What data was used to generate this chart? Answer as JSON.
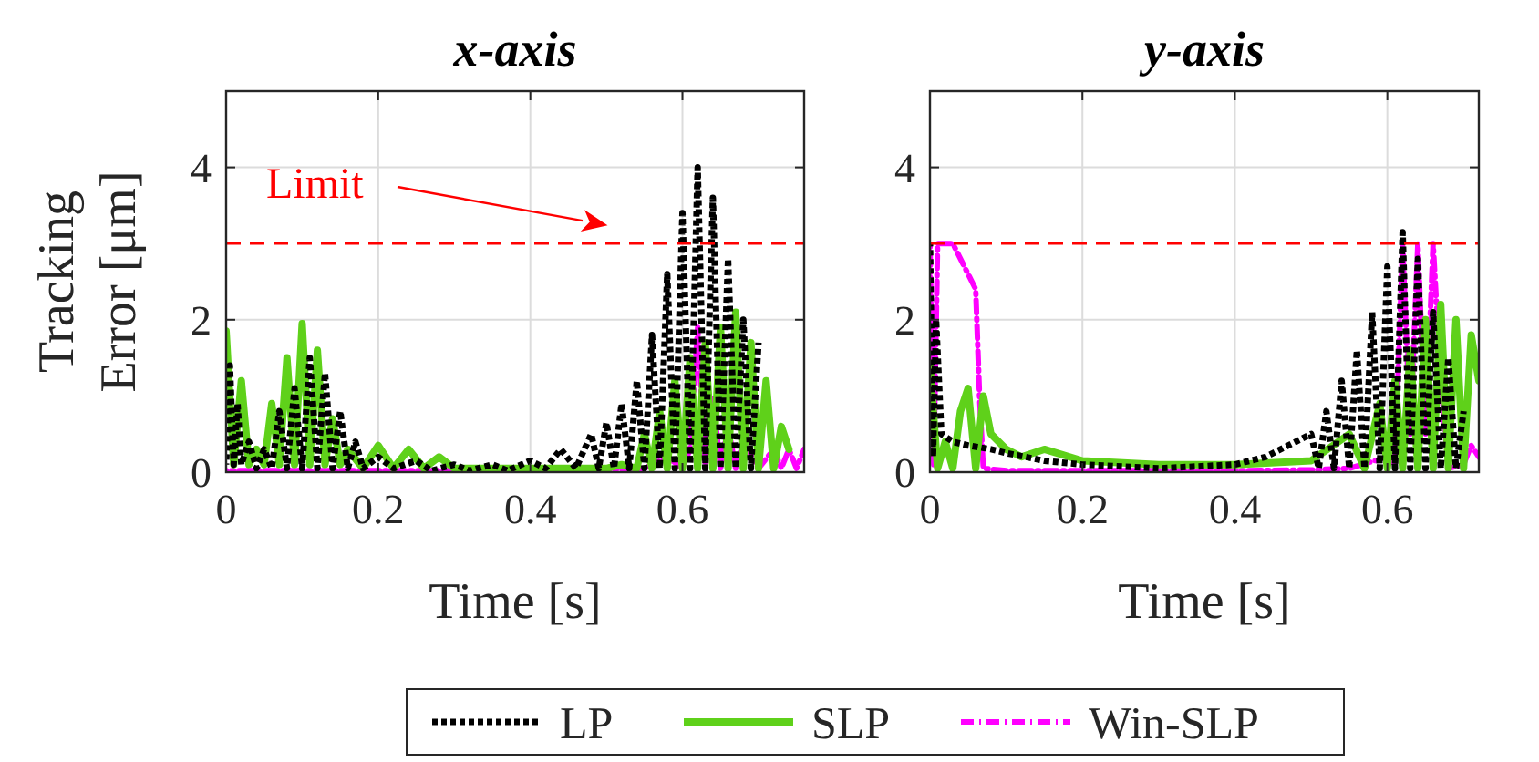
{
  "chart_data": [
    {
      "type": "line",
      "title": "x-axis",
      "xlabel": "Time [s]",
      "ylabel": "Tracking Error [μm]",
      "xlim": [
        0,
        0.76
      ],
      "xticks": [
        0,
        0.2,
        0.4,
        0.6
      ],
      "ylim": [
        0,
        5
      ],
      "yticks": [
        0,
        2,
        4
      ],
      "grid": true,
      "legend": "bottom",
      "marker": "none",
      "ref_lines": [
        {
          "axis": "y",
          "value": 3,
          "label": "Limit",
          "color": "#ff0000",
          "line_style": "dashed"
        }
      ],
      "series": [
        {
          "name": "LP",
          "color": "#000000",
          "line_style": "dotted",
          "x": [
            0,
            0.005,
            0.01,
            0.015,
            0.02,
            0.03,
            0.04,
            0.05,
            0.06,
            0.07,
            0.08,
            0.09,
            0.1,
            0.11,
            0.12,
            0.13,
            0.14,
            0.15,
            0.16,
            0.17,
            0.18,
            0.2,
            0.22,
            0.25,
            0.27,
            0.3,
            0.32,
            0.35,
            0.37,
            0.4,
            0.42,
            0.44,
            0.46,
            0.48,
            0.49,
            0.5,
            0.51,
            0.52,
            0.53,
            0.54,
            0.55,
            0.56,
            0.57,
            0.58,
            0.59,
            0.6,
            0.61,
            0.62,
            0.63,
            0.64,
            0.65,
            0.66,
            0.67,
            0.68,
            0.69,
            0.7
          ],
          "values": [
            0.1,
            1.4,
            0.1,
            0.9,
            0.1,
            0.4,
            0.05,
            0.3,
            0.05,
            0.8,
            0.05,
            1.1,
            0.05,
            1.5,
            0.05,
            1.3,
            0.05,
            0.8,
            0.05,
            0.4,
            0.05,
            0.2,
            0.05,
            0.15,
            0.02,
            0.1,
            0.02,
            0.1,
            0.02,
            0.15,
            0.05,
            0.3,
            0.05,
            0.5,
            0.05,
            0.65,
            0.05,
            0.9,
            0.05,
            1.2,
            0.05,
            1.8,
            0.05,
            2.6,
            0.05,
            3.4,
            0.05,
            4.0,
            0.05,
            3.6,
            0.05,
            2.8,
            0.05,
            2.0,
            0.05,
            1.7
          ]
        },
        {
          "name": "SLP",
          "color": "#5fd11a",
          "line_style": "solid",
          "x": [
            0,
            0.01,
            0.02,
            0.03,
            0.04,
            0.05,
            0.06,
            0.07,
            0.08,
            0.09,
            0.1,
            0.11,
            0.12,
            0.13,
            0.14,
            0.15,
            0.16,
            0.18,
            0.2,
            0.22,
            0.24,
            0.26,
            0.28,
            0.3,
            0.35,
            0.4,
            0.45,
            0.5,
            0.52,
            0.54,
            0.55,
            0.56,
            0.57,
            0.58,
            0.59,
            0.6,
            0.61,
            0.62,
            0.63,
            0.64,
            0.65,
            0.66,
            0.67,
            0.68,
            0.69,
            0.7,
            0.71,
            0.72,
            0.73,
            0.74
          ],
          "values": [
            1.85,
            0.1,
            1.2,
            0.1,
            0.3,
            0.1,
            0.9,
            0.1,
            1.5,
            0.1,
            1.95,
            0.1,
            1.6,
            0.1,
            0.7,
            0.1,
            0.3,
            0.05,
            0.35,
            0.05,
            0.3,
            0.05,
            0.2,
            0.05,
            0.05,
            0.05,
            0.05,
            0.05,
            0.1,
            0.05,
            0.5,
            0.05,
            0.8,
            0.05,
            1.2,
            0.05,
            1.5,
            0.05,
            1.7,
            0.05,
            1.9,
            0.05,
            2.1,
            0.05,
            1.7,
            0.05,
            1.2,
            0.05,
            0.6,
            0.3
          ]
        },
        {
          "name": "Win-SLP",
          "color": "#ff00ff",
          "line_style": "dashed",
          "x": [
            0,
            0.1,
            0.2,
            0.3,
            0.4,
            0.5,
            0.55,
            0.58,
            0.6,
            0.61,
            0.62,
            0.63,
            0.64,
            0.65,
            0.66,
            0.67,
            0.68,
            0.7,
            0.72,
            0.73,
            0.74,
            0.75,
            0.76
          ],
          "values": [
            0.02,
            0.02,
            0.02,
            0.02,
            0.02,
            0.03,
            0.05,
            0.2,
            0.05,
            0.3,
            1.9,
            0.05,
            1.0,
            0.05,
            0.6,
            0.05,
            0.4,
            0.05,
            0.3,
            0.05,
            0.3,
            0.05,
            0.3
          ]
        }
      ]
    },
    {
      "type": "line",
      "title": "y-axis",
      "xlabel": "Time [s]",
      "xlim": [
        0,
        0.72
      ],
      "xticks": [
        0,
        0.2,
        0.4,
        0.6
      ],
      "ylim": [
        0,
        5
      ],
      "yticks": [
        0,
        2,
        4
      ],
      "grid": true,
      "marker": "none",
      "ref_lines": [
        {
          "axis": "y",
          "value": 3,
          "color": "#ff0000",
          "line_style": "dashed"
        }
      ],
      "series": [
        {
          "name": "LP",
          "color": "#000000",
          "line_style": "dotted",
          "x": [
            0,
            0.004,
            0.008,
            0.015,
            0.03,
            0.05,
            0.08,
            0.1,
            0.15,
            0.2,
            0.3,
            0.4,
            0.44,
            0.46,
            0.48,
            0.5,
            0.51,
            0.52,
            0.53,
            0.54,
            0.55,
            0.56,
            0.57,
            0.58,
            0.59,
            0.6,
            0.61,
            0.62,
            0.63,
            0.64,
            0.65,
            0.66,
            0.67,
            0.68,
            0.69,
            0.7
          ],
          "values": [
            3.0,
            0.2,
            2.0,
            0.5,
            0.4,
            0.35,
            0.3,
            0.25,
            0.15,
            0.1,
            0.05,
            0.1,
            0.2,
            0.3,
            0.4,
            0.5,
            0.05,
            0.8,
            0.05,
            1.2,
            0.05,
            1.6,
            0.05,
            2.1,
            0.05,
            2.7,
            0.05,
            3.15,
            0.05,
            2.8,
            0.05,
            2.1,
            0.05,
            1.5,
            0.05,
            0.8
          ]
        },
        {
          "name": "SLP",
          "color": "#5fd11a",
          "line_style": "solid",
          "x": [
            0,
            0.01,
            0.02,
            0.03,
            0.04,
            0.05,
            0.06,
            0.07,
            0.08,
            0.1,
            0.12,
            0.15,
            0.2,
            0.3,
            0.4,
            0.5,
            0.55,
            0.57,
            0.59,
            0.6,
            0.61,
            0.62,
            0.63,
            0.64,
            0.65,
            0.66,
            0.67,
            0.68,
            0.69,
            0.7,
            0.71,
            0.72
          ],
          "values": [
            1.4,
            0.05,
            0.4,
            0.05,
            0.8,
            1.1,
            0.05,
            1.0,
            0.5,
            0.3,
            0.2,
            0.3,
            0.15,
            0.1,
            0.1,
            0.15,
            0.5,
            0.05,
            0.9,
            0.05,
            1.2,
            0.05,
            1.6,
            0.05,
            2.0,
            0.05,
            2.2,
            0.05,
            2.0,
            0.05,
            1.8,
            1.2
          ]
        },
        {
          "name": "Win-SLP",
          "color": "#ff00ff",
          "line_style": "dashed",
          "x": [
            0,
            0.005,
            0.01,
            0.02,
            0.03,
            0.04,
            0.05,
            0.06,
            0.065,
            0.07,
            0.1,
            0.2,
            0.3,
            0.4,
            0.5,
            0.55,
            0.6,
            0.61,
            0.62,
            0.63,
            0.64,
            0.65,
            0.66,
            0.67,
            0.68,
            0.7,
            0.71,
            0.72
          ],
          "values": [
            3.0,
            0.1,
            3.0,
            3.0,
            3.0,
            2.8,
            2.6,
            2.4,
            1.0,
            0.05,
            0.02,
            0.02,
            0.02,
            0.02,
            0.03,
            0.05,
            0.2,
            0.1,
            3.0,
            0.5,
            3.0,
            0.5,
            3.0,
            1.2,
            0.05,
            0.1,
            0.35,
            0.2
          ]
        }
      ]
    }
  ]
}
